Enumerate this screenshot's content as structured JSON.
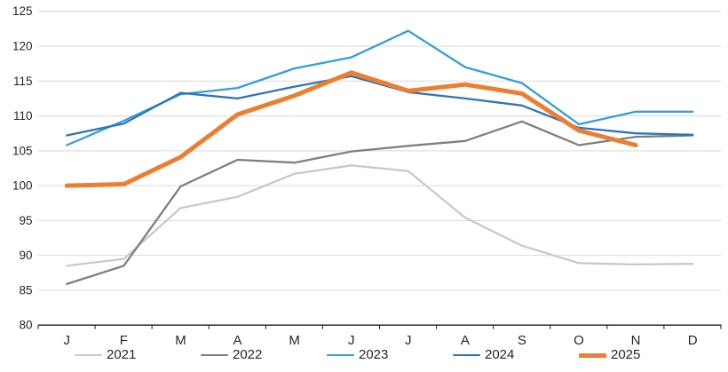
{
  "chart_data": {
    "type": "line",
    "title": "",
    "xlabel": "",
    "ylabel": "",
    "x_categories": [
      "J",
      "F",
      "M",
      "A",
      "M",
      "J",
      "J",
      "A",
      "S",
      "O",
      "N",
      "D"
    ],
    "ylim": [
      80,
      125
    ],
    "ytick_step": 5,
    "ytick_labels": [
      "80",
      "85",
      "90",
      "95",
      "100",
      "105",
      "110",
      "115",
      "120",
      "125"
    ],
    "grid": "horizontal-light-gray",
    "legend_position": "bottom",
    "colors": {
      "gridline": "#d9d9d9",
      "axis": "#1a1a1a",
      "tick_text": "#262626"
    },
    "series": [
      {
        "name": "2021",
        "color": "#c9c9c9",
        "thickness": "normal",
        "values": [
          88.5,
          89.5,
          96.8,
          98.4,
          101.7,
          102.9,
          102.1,
          95.4,
          91.4,
          88.9,
          88.7,
          88.8
        ]
      },
      {
        "name": "2022",
        "color": "#7f7f7f",
        "thickness": "normal",
        "values": [
          85.9,
          88.5,
          99.9,
          103.7,
          103.3,
          104.9,
          105.7,
          106.4,
          109.2,
          105.8,
          107.0,
          107.2
        ]
      },
      {
        "name": "2023",
        "color": "#339fdb",
        "thickness": "normal",
        "values": [
          105.8,
          109.3,
          113.1,
          114.0,
          116.8,
          118.4,
          122.2,
          117.0,
          114.7,
          108.8,
          110.6,
          110.6
        ]
      },
      {
        "name": "2024",
        "color": "#2e75b6",
        "thickness": "normal",
        "values": [
          107.2,
          108.9,
          113.3,
          112.5,
          114.2,
          115.7,
          113.4,
          112.5,
          111.5,
          108.3,
          107.5,
          107.3
        ]
      },
      {
        "name": "2025",
        "color": "#ed7d31",
        "thickness": "thick",
        "values": [
          100.0,
          100.2,
          104.1,
          110.2,
          112.9,
          116.2,
          113.6,
          114.5,
          113.2,
          107.9,
          105.8,
          null
        ]
      }
    ]
  }
}
